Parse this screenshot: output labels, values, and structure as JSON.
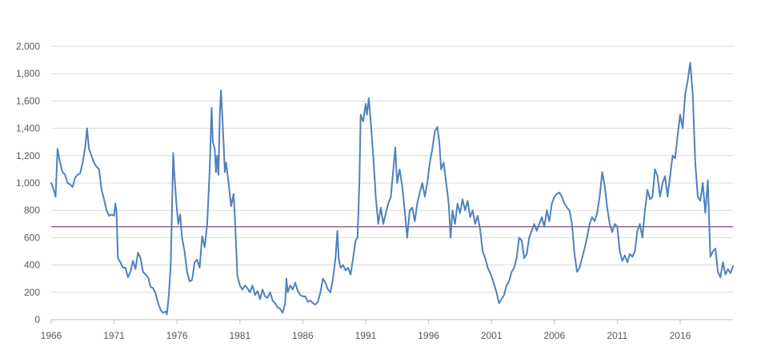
{
  "chart_data": {
    "type": "line",
    "title": "",
    "xlabel": "",
    "ylabel": "",
    "xlim": [
      1966,
      2020.2
    ],
    "ylim": [
      0,
      2000
    ],
    "grid": true,
    "legend": "none",
    "x_ticks": [
      1966,
      1971,
      1976,
      1981,
      1986,
      1991,
      1996,
      2001,
      2006,
      2011,
      2016
    ],
    "x_tick_labels": [
      "1966",
      "1971",
      "1976",
      "1981",
      "1986",
      "1991",
      "1996",
      "2001",
      "2006",
      "2011",
      "2016"
    ],
    "y_ticks": [
      0,
      200,
      400,
      600,
      800,
      1000,
      1200,
      1400,
      1600,
      1800,
      2000
    ],
    "y_tick_labels": [
      "0",
      "200",
      "400",
      "600",
      "800",
      "1,000",
      "1,200",
      "1,400",
      "1,600",
      "1,800",
      "2,000"
    ],
    "reference_line": {
      "value": 680,
      "color": "#7a4f7a"
    },
    "series": [
      {
        "color": "#4f81bd",
        "points": [
          [
            1966.0,
            1000
          ],
          [
            1966.2,
            950
          ],
          [
            1966.35,
            900
          ],
          [
            1966.5,
            1250
          ],
          [
            1966.7,
            1150
          ],
          [
            1966.9,
            1080
          ],
          [
            1967.1,
            1060
          ],
          [
            1967.3,
            1000
          ],
          [
            1967.5,
            990
          ],
          [
            1967.7,
            970
          ],
          [
            1967.9,
            1040
          ],
          [
            1968.1,
            1060
          ],
          [
            1968.3,
            1070
          ],
          [
            1968.5,
            1150
          ],
          [
            1968.7,
            1260
          ],
          [
            1968.85,
            1400
          ],
          [
            1969.0,
            1250
          ],
          [
            1969.2,
            1200
          ],
          [
            1969.4,
            1150
          ],
          [
            1969.6,
            1120
          ],
          [
            1969.8,
            1100
          ],
          [
            1970.0,
            950
          ],
          [
            1970.2,
            880
          ],
          [
            1970.4,
            800
          ],
          [
            1970.6,
            760
          ],
          [
            1970.8,
            770
          ],
          [
            1971.0,
            760
          ],
          [
            1971.1,
            850
          ],
          [
            1971.2,
            780
          ],
          [
            1971.3,
            450
          ],
          [
            1971.5,
            420
          ],
          [
            1971.7,
            380
          ],
          [
            1971.9,
            380
          ],
          [
            1972.1,
            310
          ],
          [
            1972.3,
            350
          ],
          [
            1972.5,
            430
          ],
          [
            1972.7,
            370
          ],
          [
            1972.9,
            490
          ],
          [
            1973.1,
            450
          ],
          [
            1973.3,
            350
          ],
          [
            1973.5,
            330
          ],
          [
            1973.7,
            310
          ],
          [
            1973.9,
            240
          ],
          [
            1974.1,
            230
          ],
          [
            1974.3,
            190
          ],
          [
            1974.5,
            120
          ],
          [
            1974.7,
            70
          ],
          [
            1974.9,
            50
          ],
          [
            1975.1,
            60
          ],
          [
            1975.2,
            40
          ],
          [
            1975.35,
            180
          ],
          [
            1975.5,
            400
          ],
          [
            1975.6,
            800
          ],
          [
            1975.7,
            1220
          ],
          [
            1975.8,
            1050
          ],
          [
            1975.95,
            850
          ],
          [
            1976.1,
            700
          ],
          [
            1976.25,
            770
          ],
          [
            1976.4,
            600
          ],
          [
            1976.6,
            500
          ],
          [
            1976.8,
            350
          ],
          [
            1977.0,
            280
          ],
          [
            1977.2,
            290
          ],
          [
            1977.4,
            420
          ],
          [
            1977.6,
            440
          ],
          [
            1977.8,
            380
          ],
          [
            1978.0,
            610
          ],
          [
            1978.2,
            530
          ],
          [
            1978.4,
            700
          ],
          [
            1978.6,
            1100
          ],
          [
            1978.75,
            1550
          ],
          [
            1978.85,
            1300
          ],
          [
            1979.0,
            1250
          ],
          [
            1979.1,
            1080
          ],
          [
            1979.2,
            1200
          ],
          [
            1979.3,
            1060
          ],
          [
            1979.4,
            1500
          ],
          [
            1979.5,
            1680
          ],
          [
            1979.7,
            1300
          ],
          [
            1979.8,
            1080
          ],
          [
            1979.9,
            1150
          ],
          [
            1980.1,
            1000
          ],
          [
            1980.3,
            830
          ],
          [
            1980.5,
            920
          ],
          [
            1980.6,
            750
          ],
          [
            1980.8,
            320
          ],
          [
            1981.0,
            250
          ],
          [
            1981.2,
            220
          ],
          [
            1981.4,
            250
          ],
          [
            1981.6,
            230
          ],
          [
            1981.8,
            200
          ],
          [
            1982.0,
            250
          ],
          [
            1982.2,
            180
          ],
          [
            1982.4,
            210
          ],
          [
            1982.6,
            150
          ],
          [
            1982.8,
            220
          ],
          [
            1983.0,
            170
          ],
          [
            1983.2,
            160
          ],
          [
            1983.4,
            200
          ],
          [
            1983.6,
            140
          ],
          [
            1983.8,
            120
          ],
          [
            1984.0,
            90
          ],
          [
            1984.2,
            80
          ],
          [
            1984.4,
            50
          ],
          [
            1984.6,
            120
          ],
          [
            1984.7,
            300
          ],
          [
            1984.8,
            200
          ],
          [
            1985.0,
            250
          ],
          [
            1985.2,
            220
          ],
          [
            1985.4,
            270
          ],
          [
            1985.6,
            210
          ],
          [
            1985.8,
            180
          ],
          [
            1986.0,
            170
          ],
          [
            1986.2,
            170
          ],
          [
            1986.4,
            130
          ],
          [
            1986.6,
            140
          ],
          [
            1986.8,
            120
          ],
          [
            1987.0,
            110
          ],
          [
            1987.2,
            130
          ],
          [
            1987.4,
            200
          ],
          [
            1987.6,
            300
          ],
          [
            1987.8,
            270
          ],
          [
            1988.0,
            220
          ],
          [
            1988.2,
            200
          ],
          [
            1988.4,
            300
          ],
          [
            1988.6,
            450
          ],
          [
            1988.75,
            650
          ],
          [
            1988.85,
            450
          ],
          [
            1989.0,
            380
          ],
          [
            1989.2,
            400
          ],
          [
            1989.4,
            360
          ],
          [
            1989.6,
            380
          ],
          [
            1989.8,
            330
          ],
          [
            1990.0,
            450
          ],
          [
            1990.2,
            580
          ],
          [
            1990.35,
            600
          ],
          [
            1990.5,
            1000
          ],
          [
            1990.6,
            1500
          ],
          [
            1990.8,
            1450
          ],
          [
            1991.0,
            1580
          ],
          [
            1991.1,
            1500
          ],
          [
            1991.25,
            1620
          ],
          [
            1991.4,
            1450
          ],
          [
            1991.6,
            1200
          ],
          [
            1991.8,
            900
          ],
          [
            1992.0,
            700
          ],
          [
            1992.2,
            820
          ],
          [
            1992.4,
            700
          ],
          [
            1992.6,
            780
          ],
          [
            1992.8,
            850
          ],
          [
            1993.0,
            900
          ],
          [
            1993.2,
            1100
          ],
          [
            1993.35,
            1260
          ],
          [
            1993.5,
            1000
          ],
          [
            1993.7,
            1100
          ],
          [
            1993.9,
            980
          ],
          [
            1994.1,
            800
          ],
          [
            1994.3,
            600
          ],
          [
            1994.5,
            800
          ],
          [
            1994.7,
            820
          ],
          [
            1994.9,
            720
          ],
          [
            1995.1,
            850
          ],
          [
            1995.3,
            930
          ],
          [
            1995.5,
            1000
          ],
          [
            1995.7,
            900
          ],
          [
            1995.9,
            1000
          ],
          [
            1996.1,
            1150
          ],
          [
            1996.3,
            1250
          ],
          [
            1996.5,
            1380
          ],
          [
            1996.7,
            1410
          ],
          [
            1996.85,
            1300
          ],
          [
            1997.0,
            1100
          ],
          [
            1997.2,
            1150
          ],
          [
            1997.4,
            1000
          ],
          [
            1997.6,
            850
          ],
          [
            1997.75,
            600
          ],
          [
            1997.9,
            800
          ],
          [
            1998.1,
            700
          ],
          [
            1998.3,
            850
          ],
          [
            1998.5,
            780
          ],
          [
            1998.7,
            880
          ],
          [
            1998.9,
            800
          ],
          [
            1999.1,
            870
          ],
          [
            1999.3,
            750
          ],
          [
            1999.5,
            800
          ],
          [
            1999.7,
            700
          ],
          [
            1999.9,
            760
          ],
          [
            2000.1,
            660
          ],
          [
            2000.3,
            500
          ],
          [
            2000.5,
            450
          ],
          [
            2000.7,
            380
          ],
          [
            2001.0,
            320
          ],
          [
            2001.2,
            260
          ],
          [
            2001.4,
            200
          ],
          [
            2001.6,
            120
          ],
          [
            2001.8,
            150
          ],
          [
            2002.0,
            180
          ],
          [
            2002.2,
            250
          ],
          [
            2002.4,
            280
          ],
          [
            2002.6,
            350
          ],
          [
            2002.8,
            380
          ],
          [
            2003.0,
            450
          ],
          [
            2003.2,
            600
          ],
          [
            2003.4,
            580
          ],
          [
            2003.6,
            450
          ],
          [
            2003.8,
            480
          ],
          [
            2004.0,
            600
          ],
          [
            2004.2,
            650
          ],
          [
            2004.4,
            700
          ],
          [
            2004.6,
            650
          ],
          [
            2004.8,
            700
          ],
          [
            2005.0,
            750
          ],
          [
            2005.2,
            680
          ],
          [
            2005.4,
            800
          ],
          [
            2005.6,
            720
          ],
          [
            2005.8,
            850
          ],
          [
            2006.0,
            900
          ],
          [
            2006.2,
            920
          ],
          [
            2006.4,
            930
          ],
          [
            2006.6,
            900
          ],
          [
            2006.8,
            850
          ],
          [
            2007.0,
            820
          ],
          [
            2007.2,
            800
          ],
          [
            2007.4,
            700
          ],
          [
            2007.6,
            480
          ],
          [
            2007.8,
            350
          ],
          [
            2008.0,
            380
          ],
          [
            2008.2,
            450
          ],
          [
            2008.4,
            520
          ],
          [
            2008.6,
            600
          ],
          [
            2008.8,
            700
          ],
          [
            2009.0,
            750
          ],
          [
            2009.2,
            720
          ],
          [
            2009.4,
            780
          ],
          [
            2009.6,
            900
          ],
          [
            2009.8,
            1080
          ],
          [
            2010.0,
            980
          ],
          [
            2010.2,
            820
          ],
          [
            2010.4,
            700
          ],
          [
            2010.6,
            640
          ],
          [
            2010.8,
            700
          ],
          [
            2011.0,
            680
          ],
          [
            2011.2,
            500
          ],
          [
            2011.4,
            430
          ],
          [
            2011.6,
            470
          ],
          [
            2011.8,
            420
          ],
          [
            2012.0,
            480
          ],
          [
            2012.2,
            460
          ],
          [
            2012.4,
            500
          ],
          [
            2012.6,
            650
          ],
          [
            2012.8,
            700
          ],
          [
            2013.0,
            600
          ],
          [
            2013.2,
            800
          ],
          [
            2013.4,
            950
          ],
          [
            2013.6,
            880
          ],
          [
            2013.8,
            900
          ],
          [
            2014.0,
            1100
          ],
          [
            2014.2,
            1050
          ],
          [
            2014.4,
            900
          ],
          [
            2014.6,
            1000
          ],
          [
            2014.8,
            1050
          ],
          [
            2015.0,
            900
          ],
          [
            2015.2,
            1050
          ],
          [
            2015.4,
            1200
          ],
          [
            2015.6,
            1180
          ],
          [
            2015.8,
            1350
          ],
          [
            2016.0,
            1500
          ],
          [
            2016.2,
            1400
          ],
          [
            2016.4,
            1650
          ],
          [
            2016.6,
            1750
          ],
          [
            2016.8,
            1880
          ],
          [
            2017.0,
            1650
          ],
          [
            2017.2,
            1150
          ],
          [
            2017.4,
            900
          ],
          [
            2017.6,
            870
          ],
          [
            2017.8,
            1000
          ],
          [
            2018.0,
            780
          ],
          [
            2018.2,
            1020
          ],
          [
            2018.4,
            460
          ],
          [
            2018.6,
            500
          ],
          [
            2018.8,
            520
          ],
          [
            2019.0,
            350
          ],
          [
            2019.2,
            310
          ],
          [
            2019.4,
            420
          ],
          [
            2019.6,
            330
          ],
          [
            2019.8,
            370
          ],
          [
            2020.0,
            340
          ],
          [
            2020.2,
            390
          ]
        ]
      }
    ]
  }
}
